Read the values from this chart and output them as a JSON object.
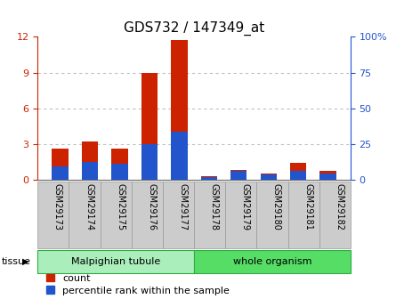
{
  "title": "GDS732 / 147349_at",
  "samples": [
    "GSM29173",
    "GSM29174",
    "GSM29175",
    "GSM29176",
    "GSM29177",
    "GSM29178",
    "GSM29179",
    "GSM29180",
    "GSM29181",
    "GSM29182"
  ],
  "count_values": [
    2.6,
    3.2,
    2.6,
    9.0,
    11.7,
    0.3,
    0.8,
    0.5,
    1.4,
    0.7
  ],
  "percentile_values": [
    1.1,
    1.5,
    1.3,
    3.0,
    4.0,
    0.2,
    0.7,
    0.4,
    0.7,
    0.5
  ],
  "left_ylim": [
    0,
    12
  ],
  "right_ylim": [
    0,
    100
  ],
  "left_yticks": [
    0,
    3,
    6,
    9,
    12
  ],
  "right_yticks": [
    0,
    25,
    50,
    75,
    100
  ],
  "bar_color": "#cc2200",
  "percentile_color": "#2255cc",
  "bar_width": 0.55,
  "groups": [
    {
      "label": "Malpighian tubule",
      "start": 0,
      "end": 5,
      "color": "#aaeebb"
    },
    {
      "label": "whole organism",
      "start": 5,
      "end": 10,
      "color": "#55dd66"
    }
  ],
  "tissue_label": "tissue",
  "legend_items": [
    {
      "label": "count",
      "color": "#cc2200"
    },
    {
      "label": "percentile rank within the sample",
      "color": "#2255cc"
    }
  ],
  "grid_color": "#000000",
  "grid_alpha": 0.25,
  "bg_color": "#ffffff",
  "tick_label_color_left": "#cc2200",
  "tick_label_color_right": "#2255cc",
  "title_fontsize": 11,
  "axis_fontsize": 8,
  "legend_fontsize": 8,
  "xtick_fontsize": 7,
  "xtick_bg": "#cccccc",
  "xtick_border": "#999999"
}
